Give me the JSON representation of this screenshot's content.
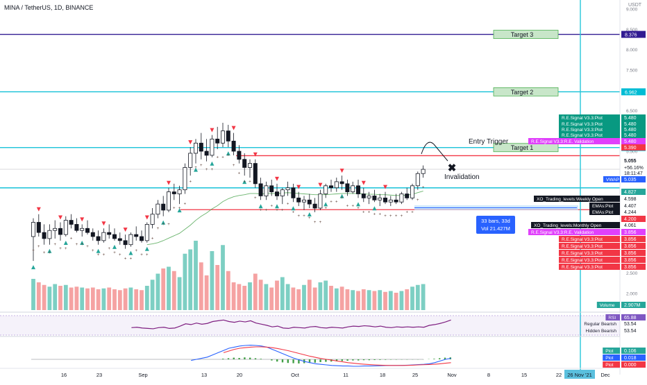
{
  "header": {
    "symbol_title": "MINA / TetherUS, 1D, BINANCE",
    "currency_badge": "USDT"
  },
  "chart_data": {
    "type": "candlestick",
    "title": "MINA / TetherUS, 1D, BINANCE",
    "ylim": [
      1.6,
      9.6
    ],
    "price_ticks": [
      "9.000",
      "8.500",
      "8.000",
      "7.500",
      "6.500",
      "6.000",
      "5.500",
      "5.000",
      "4.500",
      "4.000",
      "3.500",
      "3.000",
      "2.500",
      "2.000"
    ],
    "x_ticks": [
      "16",
      "23",
      "Sep",
      "13",
      "20",
      "Oct",
      "11",
      "18",
      "25",
      "Nov",
      "8",
      "15",
      "22",
      "Dec"
    ],
    "x_highlight": "26 Nov '21",
    "candles": [
      {
        "o": 3.4,
        "h": 3.85,
        "l": 2.8,
        "c": 3.75
      },
      {
        "o": 3.75,
        "h": 3.95,
        "l": 3.4,
        "c": 3.5
      },
      {
        "o": 3.5,
        "h": 3.7,
        "l": 3.2,
        "c": 3.35
      },
      {
        "o": 3.35,
        "h": 3.7,
        "l": 3.2,
        "c": 3.55
      },
      {
        "o": 3.55,
        "h": 3.8,
        "l": 3.35,
        "c": 3.6
      },
      {
        "o": 3.6,
        "h": 3.75,
        "l": 3.3,
        "c": 3.45
      },
      {
        "o": 3.45,
        "h": 3.9,
        "l": 3.4,
        "c": 3.8
      },
      {
        "o": 3.8,
        "h": 3.95,
        "l": 3.6,
        "c": 3.7
      },
      {
        "o": 3.7,
        "h": 3.85,
        "l": 3.5,
        "c": 3.55
      },
      {
        "o": 3.55,
        "h": 3.7,
        "l": 3.4,
        "c": 3.6
      },
      {
        "o": 3.6,
        "h": 3.8,
        "l": 3.45,
        "c": 3.5
      },
      {
        "o": 3.5,
        "h": 3.6,
        "l": 3.3,
        "c": 3.4
      },
      {
        "o": 3.4,
        "h": 3.55,
        "l": 3.2,
        "c": 3.3
      },
      {
        "o": 3.3,
        "h": 3.6,
        "l": 3.25,
        "c": 3.5
      },
      {
        "o": 3.5,
        "h": 3.7,
        "l": 3.35,
        "c": 3.45
      },
      {
        "o": 3.45,
        "h": 3.6,
        "l": 3.3,
        "c": 3.35
      },
      {
        "o": 3.35,
        "h": 3.5,
        "l": 3.2,
        "c": 3.3
      },
      {
        "o": 3.3,
        "h": 3.45,
        "l": 3.1,
        "c": 3.2
      },
      {
        "o": 3.2,
        "h": 3.5,
        "l": 3.15,
        "c": 3.45
      },
      {
        "o": 3.45,
        "h": 3.65,
        "l": 3.3,
        "c": 3.4
      },
      {
        "o": 3.4,
        "h": 3.55,
        "l": 3.25,
        "c": 3.3
      },
      {
        "o": 3.3,
        "h": 3.75,
        "l": 3.25,
        "c": 3.7
      },
      {
        "o": 3.7,
        "h": 4.1,
        "l": 3.6,
        "c": 3.95
      },
      {
        "o": 3.95,
        "h": 4.3,
        "l": 3.85,
        "c": 4.2
      },
      {
        "o": 4.2,
        "h": 4.4,
        "l": 3.9,
        "c": 4.05
      },
      {
        "o": 4.05,
        "h": 4.6,
        "l": 4.0,
        "c": 4.5
      },
      {
        "o": 4.5,
        "h": 4.7,
        "l": 4.3,
        "c": 4.45
      },
      {
        "o": 4.45,
        "h": 4.65,
        "l": 4.2,
        "c": 4.55
      },
      {
        "o": 4.55,
        "h": 5.2,
        "l": 4.45,
        "c": 5.1
      },
      {
        "o": 5.1,
        "h": 5.6,
        "l": 4.9,
        "c": 5.45
      },
      {
        "o": 5.45,
        "h": 5.8,
        "l": 5.2,
        "c": 5.7
      },
      {
        "o": 5.7,
        "h": 5.95,
        "l": 5.3,
        "c": 5.5
      },
      {
        "o": 5.5,
        "h": 5.8,
        "l": 5.25,
        "c": 5.4
      },
      {
        "o": 5.4,
        "h": 5.9,
        "l": 5.35,
        "c": 5.8
      },
      {
        "o": 5.8,
        "h": 6.1,
        "l": 5.55,
        "c": 5.7
      },
      {
        "o": 5.7,
        "h": 6.2,
        "l": 5.6,
        "c": 6.0
      },
      {
        "o": 6.0,
        "h": 6.15,
        "l": 5.6,
        "c": 5.75
      },
      {
        "o": 5.75,
        "h": 5.95,
        "l": 5.4,
        "c": 5.5
      },
      {
        "o": 5.5,
        "h": 5.65,
        "l": 5.2,
        "c": 5.3
      },
      {
        "o": 5.3,
        "h": 5.45,
        "l": 4.9,
        "c": 5.1
      },
      {
        "o": 5.1,
        "h": 5.3,
        "l": 4.85,
        "c": 5.2
      },
      {
        "o": 5.2,
        "h": 5.3,
        "l": 4.6,
        "c": 4.7
      },
      {
        "o": 4.7,
        "h": 4.85,
        "l": 4.3,
        "c": 4.4
      },
      {
        "o": 4.4,
        "h": 4.75,
        "l": 4.3,
        "c": 4.65
      },
      {
        "o": 4.65,
        "h": 4.8,
        "l": 4.4,
        "c": 4.5
      },
      {
        "o": 4.5,
        "h": 4.7,
        "l": 4.3,
        "c": 4.4
      },
      {
        "o": 4.4,
        "h": 4.6,
        "l": 4.2,
        "c": 4.55
      },
      {
        "o": 4.55,
        "h": 4.75,
        "l": 4.4,
        "c": 4.6
      },
      {
        "o": 4.6,
        "h": 4.7,
        "l": 4.25,
        "c": 4.35
      },
      {
        "o": 4.35,
        "h": 4.5,
        "l": 4.15,
        "c": 4.25
      },
      {
        "o": 4.25,
        "h": 4.4,
        "l": 4.05,
        "c": 4.3
      },
      {
        "o": 4.3,
        "h": 4.45,
        "l": 4.1,
        "c": 4.2
      },
      {
        "o": 4.2,
        "h": 4.35,
        "l": 4.0,
        "c": 4.1
      },
      {
        "o": 4.1,
        "h": 4.55,
        "l": 4.05,
        "c": 4.45
      },
      {
        "o": 4.45,
        "h": 4.7,
        "l": 4.35,
        "c": 4.65
      },
      {
        "o": 4.65,
        "h": 4.8,
        "l": 4.5,
        "c": 4.6
      },
      {
        "o": 4.6,
        "h": 4.85,
        "l": 4.5,
        "c": 4.75
      },
      {
        "o": 4.75,
        "h": 4.9,
        "l": 4.55,
        "c": 4.7
      },
      {
        "o": 4.7,
        "h": 4.8,
        "l": 4.4,
        "c": 4.5
      },
      {
        "o": 4.5,
        "h": 4.75,
        "l": 4.45,
        "c": 4.65
      },
      {
        "o": 4.65,
        "h": 4.8,
        "l": 4.35,
        "c": 4.45
      },
      {
        "o": 4.45,
        "h": 4.6,
        "l": 4.25,
        "c": 4.35
      },
      {
        "o": 4.35,
        "h": 4.5,
        "l": 4.2,
        "c": 4.4
      },
      {
        "o": 4.4,
        "h": 4.55,
        "l": 4.25,
        "c": 4.3
      },
      {
        "o": 4.3,
        "h": 4.45,
        "l": 4.15,
        "c": 4.35
      },
      {
        "o": 4.35,
        "h": 4.5,
        "l": 4.2,
        "c": 4.25
      },
      {
        "o": 4.25,
        "h": 4.4,
        "l": 4.15,
        "c": 4.3
      },
      {
        "o": 4.3,
        "h": 4.45,
        "l": 4.2,
        "c": 4.25
      },
      {
        "o": 4.25,
        "h": 4.5,
        "l": 4.2,
        "c": 4.45
      },
      {
        "o": 4.45,
        "h": 4.6,
        "l": 4.3,
        "c": 4.35
      },
      {
        "o": 4.35,
        "h": 4.7,
        "l": 4.3,
        "c": 4.65
      },
      {
        "o": 4.65,
        "h": 5.0,
        "l": 4.55,
        "c": 4.95
      },
      {
        "o": 4.95,
        "h": 5.15,
        "l": 4.85,
        "c": 5.055
      }
    ],
    "volume": [
      3.6,
      3.2,
      2.9,
      2.7,
      3.0,
      2.8,
      2.9,
      2.6,
      2.7,
      2.6,
      2.5,
      2.6,
      2.4,
      2.5,
      2.6,
      2.4,
      2.3,
      2.5,
      2.6,
      2.4,
      2.3,
      2.8,
      3.5,
      4.2,
      4.8,
      5.0,
      4.5,
      3.8,
      6.5,
      7.0,
      8.0,
      5.5,
      4.0,
      6.8,
      5.2,
      7.5,
      4.5,
      3.2,
      3.0,
      2.8,
      3.2,
      4.2,
      3.5,
      3.0,
      2.6,
      3.4,
      3.8,
      3.0,
      2.6,
      2.4,
      2.9,
      3.5,
      2.6,
      3.2,
      3.4,
      2.8,
      2.5,
      2.7,
      2.4,
      2.3,
      2.2,
      2.4,
      2.3,
      2.2,
      2.3,
      2.1,
      2.2,
      2.0,
      2.2,
      2.4,
      2.7,
      2.9,
      3.0
    ],
    "volume_up": [
      true,
      false,
      false,
      true,
      true,
      false,
      true,
      false,
      false,
      true,
      false,
      false,
      false,
      true,
      false,
      false,
      false,
      false,
      true,
      false,
      false,
      true,
      true,
      true,
      false,
      true,
      false,
      true,
      true,
      true,
      true,
      false,
      false,
      true,
      false,
      true,
      false,
      false,
      false,
      false,
      true,
      false,
      false,
      true,
      false,
      false,
      true,
      true,
      false,
      false,
      true,
      false,
      false,
      true,
      true,
      false,
      true,
      false,
      false,
      true,
      false,
      false,
      true,
      false,
      true,
      false,
      true,
      false,
      true,
      false,
      true,
      true,
      true
    ],
    "rsi": [
      58,
      54,
      52,
      50,
      51,
      49,
      50,
      48,
      49,
      47,
      46,
      47,
      45,
      46,
      47,
      45,
      44,
      43,
      46,
      47,
      44,
      45,
      50,
      56,
      54,
      58,
      55,
      57,
      62,
      64,
      66,
      62,
      60,
      63,
      61,
      64,
      58,
      55,
      52,
      48,
      50,
      45,
      44,
      47,
      46,
      45,
      48,
      49,
      46,
      45,
      47,
      46,
      45,
      48,
      50,
      49,
      51,
      50,
      48,
      50,
      47,
      46,
      48,
      47,
      48,
      47,
      48,
      47,
      52,
      54,
      57,
      61,
      65.88
    ],
    "macd_hist": [
      0,
      0,
      0,
      0,
      0,
      0,
      0,
      0,
      0,
      0,
      0,
      0,
      0,
      0,
      0,
      0,
      0,
      0,
      0,
      0,
      0,
      0,
      0,
      0,
      0,
      0,
      0,
      0,
      0,
      0,
      0.012,
      0.02,
      0.03,
      0.025,
      0.035,
      0.03,
      0.02,
      0.01,
      0,
      -0.02,
      -0.04,
      -0.055,
      -0.065,
      -0.07,
      -0.075,
      -0.07,
      -0.065,
      -0.06,
      -0.05,
      -0.045,
      -0.04,
      -0.035,
      -0.03,
      -0.025,
      -0.02,
      -0.02,
      -0.015,
      -0.015,
      -0.012,
      -0.01,
      -0.008,
      -0.006,
      -0.005,
      -0.004,
      -0.004,
      -0.003,
      -0.003,
      -0.002,
      0.004,
      0.01,
      0.02,
      0.03,
      0.035
    ],
    "macd": [
      null,
      null,
      null,
      null,
      null,
      null,
      null,
      null,
      null,
      null,
      null,
      null,
      null,
      null,
      null,
      null,
      null,
      null,
      null,
      null,
      null,
      null,
      null,
      null,
      -0.02,
      0.0,
      0.02,
      0.04,
      0.08,
      0.12,
      0.16,
      0.2,
      0.22,
      0.24,
      0.25,
      0.255,
      0.25,
      0.24,
      0.22,
      0.18,
      0.14,
      0.1,
      0.06,
      0.02,
      -0.01,
      -0.04,
      -0.06,
      -0.08,
      -0.09,
      -0.1,
      -0.11,
      -0.115,
      -0.12,
      -0.12,
      -0.125,
      -0.125,
      -0.12,
      -0.12,
      -0.118,
      -0.115,
      -0.112,
      -0.11,
      -0.11,
      -0.108,
      -0.105,
      -0.1,
      -0.095,
      -0.09,
      -0.08,
      -0.06,
      -0.03,
      0.0,
      0.018
    ],
    "macd_signal": [
      null,
      null,
      null,
      null,
      null,
      null,
      null,
      null,
      null,
      null,
      null,
      null,
      null,
      null,
      null,
      null,
      null,
      null,
      null,
      null,
      null,
      null,
      null,
      null,
      null,
      null,
      null,
      null,
      null,
      null,
      0.12,
      0.15,
      0.18,
      0.2,
      0.21,
      0.22,
      0.225,
      0.225,
      0.22,
      0.21,
      0.195,
      0.175,
      0.155,
      0.13,
      0.105,
      0.08,
      0.055,
      0.035,
      0.015,
      0.0,
      -0.015,
      -0.03,
      -0.045,
      -0.06,
      -0.07,
      -0.08,
      -0.088,
      -0.095,
      -0.1,
      -0.105,
      -0.108,
      -0.11,
      -0.11,
      -0.11,
      -0.108,
      -0.105,
      -0.1,
      -0.097,
      -0.093,
      -0.088,
      -0.08,
      -0.07,
      -0.06
    ],
    "ema": [
      null,
      null,
      null,
      null,
      null,
      null,
      null,
      null,
      null,
      null,
      null,
      null,
      null,
      null,
      null,
      null,
      null,
      null,
      null,
      null,
      null,
      3.2,
      3.22,
      3.25,
      3.3,
      3.36,
      3.42,
      3.48,
      3.58,
      3.68,
      3.8,
      3.9,
      3.98,
      4.08,
      4.16,
      4.26,
      4.33,
      4.38,
      4.41,
      4.43,
      4.46,
      4.46,
      4.45,
      4.46,
      4.46,
      4.46,
      4.47,
      4.48,
      4.47,
      4.46,
      4.45,
      4.44,
      4.43,
      4.43,
      4.43,
      4.44,
      4.45,
      4.46,
      4.46,
      4.46,
      4.46,
      4.45,
      4.44,
      4.44,
      4.43,
      4.43,
      4.42,
      4.41,
      4.41,
      4.42,
      4.44,
      4.48,
      4.52
    ],
    "hlines": [
      {
        "value": 8.376,
        "color": "#311b92",
        "label": "8.376",
        "text": ""
      },
      {
        "value": 6.962,
        "color": "#00bcd4",
        "label": "6.962",
        "text": ""
      },
      {
        "value": 5.59,
        "color": "#00bcd4",
        "label": "5.590",
        "text": ""
      },
      {
        "value": 5.39,
        "color": "#f23645",
        "label": "5.390",
        "text": ""
      },
      {
        "value": 4.598,
        "color": "#00bcd4",
        "label": "4.598",
        "text": ""
      },
      {
        "value": 4.061,
        "color": "#f23645",
        "label": "4.061",
        "text": ""
      }
    ],
    "targets": [
      {
        "label": "Target 3",
        "value": 8.376
      },
      {
        "label": "Target  2",
        "value": 6.962
      },
      {
        "label": "Target 1",
        "value": 5.59
      }
    ],
    "annotations": {
      "entry": "Entry Trigger",
      "invalidation": "Invalidation",
      "bars_box_line1": "33 bars, 33d",
      "bars_box_line2": "Vol 21.427M"
    },
    "right_labels": [
      {
        "text": "R.E.Signal V3.3:Plot",
        "value": "5.480",
        "color": "#089981"
      },
      {
        "text": "R.E.Signal V3.3:Plot",
        "value": "5.480",
        "color": "#089981"
      },
      {
        "text": "R.E.Signal V3.3:Plot",
        "value": "5.480",
        "color": "#089981"
      },
      {
        "text": "R.E.Signal V3.3:Plot",
        "value": "5.480",
        "color": "#089981"
      },
      {
        "text": "R.E.Signal V3.3:R.E. Validation",
        "value": "5.480",
        "color": "#e040fb"
      },
      {
        "text": "",
        "value": "5.390",
        "color": "#f23645"
      },
      {
        "text": "",
        "value": "5.055",
        "color": "#131722"
      },
      {
        "text": "",
        "value": "+56.16%",
        "color": "#131722"
      },
      {
        "text": "",
        "value": "18:11:47",
        "color": "#131722"
      },
      {
        "text": "VWAP",
        "value": "5.035",
        "color": "#2962ff"
      },
      {
        "text": "",
        "value": "4.827",
        "color": "#26a69a"
      },
      {
        "text": "XO_Trading_levels:Weekly Open",
        "value": "4.598",
        "color": "#131722"
      },
      {
        "text": "EMAs:Plot",
        "value": "4.407",
        "color": "#131722"
      },
      {
        "text": "EMAs:Plot",
        "value": "4.244",
        "color": "#131722"
      },
      {
        "text": "",
        "value": "4.200",
        "color": "#f23645"
      },
      {
        "text": "XO_Trading_levels:Monthly Open",
        "value": "4.061",
        "color": "#131722"
      },
      {
        "text": "R.E.Signal V3.3:R.E. Validation",
        "value": "3.856",
        "color": "#e040fb"
      },
      {
        "text": "R.E.Signal V3.3:Plot",
        "value": "3.856",
        "color": "#f23645"
      },
      {
        "text": "R.E.Signal V3.3:Plot",
        "value": "3.856",
        "color": "#f23645"
      },
      {
        "text": "R.E.Signal V3.3:Plot",
        "value": "3.856",
        "color": "#f23645"
      },
      {
        "text": "R.E.Signal V3.3:Plot",
        "value": "3.856",
        "color": "#f23645"
      },
      {
        "text": "R.E.Signal V3.3:Plot",
        "value": "3.856",
        "color": "#f23645"
      }
    ],
    "pane_right_labels": [
      {
        "text": "Volume",
        "value": "2.907M",
        "color": "#26a69a"
      },
      {
        "text": "RSI",
        "value": "65.88",
        "color": "#7e57c2"
      },
      {
        "text": "Regular Bearish",
        "value": "53.54",
        "color": "#ffffff"
      },
      {
        "text": "Hidden Bearish",
        "value": "53.54",
        "color": "#ffffff"
      },
      {
        "text": "Plot",
        "value": "0.106",
        "color": "#26a69a"
      },
      {
        "text": "Plot",
        "value": "0.018",
        "color": "#2962ff"
      },
      {
        "text": "Plot",
        "value": "0.000",
        "color": "#f23645"
      }
    ]
  }
}
